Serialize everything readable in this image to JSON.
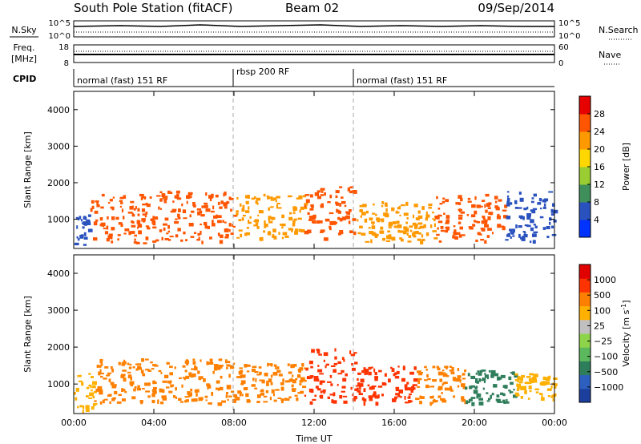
{
  "header": {
    "station": "South Pole Station (fitACF)",
    "beam": "Beam 02",
    "date": "09/Sep/2014"
  },
  "top_panels": {
    "nsky_label": "N.Sky",
    "nsearch_label": "N.Search",
    "nsky_ticks": [
      "10^5",
      "10^0"
    ],
    "nsearch_ticks": [
      "10^5",
      "10^0"
    ],
    "freq_label": "Freq.",
    "freq_unit": "[MHz]",
    "freq_ticks": [
      "18",
      "8"
    ],
    "nave_label": "Nave",
    "nave_ticks": [
      "60",
      "0"
    ],
    "cpid_label": "CPID",
    "cpid_segments": [
      {
        "label": "normal (fast) 151 RF",
        "start_h": 0,
        "end_h": 8
      },
      {
        "label": "rbsp 200 RF",
        "start_h": 8,
        "end_h": 14
      },
      {
        "label": "normal (fast) 151 RF",
        "start_h": 14,
        "end_h": 24
      }
    ]
  },
  "power_colorbar": {
    "label": "Power [dB]",
    "ticks": [
      "4",
      "8",
      "12",
      "16",
      "20",
      "24",
      "28"
    ],
    "colors": [
      "#0033ff",
      "#2a52be",
      "#3f8f5a",
      "#9acd32",
      "#ffd700",
      "#ff9900",
      "#ff5500",
      "#e60000"
    ]
  },
  "velocity_colorbar": {
    "label": "Velocity [m s",
    "label_exp": "-1",
    "label_close": "]",
    "ticks": [
      "1000",
      "500",
      "100",
      "25",
      "−25",
      "−100",
      "−500",
      "−1000"
    ],
    "colors": [
      "#1c3f9e",
      "#2d5fbf",
      "#2e7d5b",
      "#5cb85c",
      "#8ed44a",
      "#c0c0c0",
      "#ffb000",
      "#ff8000",
      "#ff3300",
      "#e00000"
    ]
  },
  "chart_data": [
    {
      "type": "heatmap",
      "title": "Power",
      "xlabel": "",
      "ylabel": "Slant Range [km]",
      "xlim": [
        0,
        24
      ],
      "ylim": [
        200,
        4500
      ],
      "x_ticks": [
        "00:00",
        "04:00",
        "08:00",
        "12:00",
        "16:00",
        "20:00",
        "00:00"
      ],
      "y_ticks": [
        1000,
        2000,
        3000,
        4000
      ],
      "mode_boundaries_h": [
        8,
        14
      ],
      "bands": [
        {
          "t0": 0.0,
          "t1": 0.8,
          "r0": 300,
          "r1": 1200,
          "color": "#2a52be"
        },
        {
          "t0": 0.8,
          "t1": 4.0,
          "r0": 350,
          "r1": 1700,
          "color": "#ff5500"
        },
        {
          "t0": 4.0,
          "t1": 8.0,
          "r0": 400,
          "r1": 1800,
          "color": "#ff5500"
        },
        {
          "t0": 8.0,
          "t1": 11.5,
          "r0": 500,
          "r1": 1700,
          "color": "#ff9900"
        },
        {
          "t0": 11.5,
          "t1": 14.0,
          "r0": 500,
          "r1": 2000,
          "color": "#ff5500"
        },
        {
          "t0": 14.0,
          "t1": 18.0,
          "r0": 400,
          "r1": 1500,
          "color": "#ff9900"
        },
        {
          "t0": 18.0,
          "t1": 21.5,
          "r0": 400,
          "r1": 1700,
          "color": "#ff5500"
        },
        {
          "t0": 21.5,
          "t1": 24.0,
          "r0": 400,
          "r1": 1800,
          "color": "#2a52be"
        }
      ]
    },
    {
      "type": "heatmap",
      "title": "Velocity",
      "xlabel": "Time UT",
      "ylabel": "Slant Range [km]",
      "xlim": [
        0,
        24
      ],
      "ylim": [
        200,
        4500
      ],
      "x_ticks": [
        "00:00",
        "04:00",
        "08:00",
        "12:00",
        "16:00",
        "20:00",
        "00:00"
      ],
      "y_ticks": [
        1000,
        2000,
        3000,
        4000
      ],
      "mode_boundaries_h": [
        8,
        14
      ],
      "bands": [
        {
          "t0": 0.0,
          "t1": 1.0,
          "r0": 300,
          "r1": 1300,
          "color": "#ffb000"
        },
        {
          "t0": 1.0,
          "t1": 8.0,
          "r0": 500,
          "r1": 1700,
          "color": "#ff8000"
        },
        {
          "t0": 8.0,
          "t1": 11.5,
          "r0": 500,
          "r1": 1600,
          "color": "#ff8000"
        },
        {
          "t0": 11.5,
          "t1": 14.0,
          "r0": 500,
          "r1": 2000,
          "color": "#ff3300"
        },
        {
          "t0": 14.0,
          "t1": 17.0,
          "r0": 500,
          "r1": 1500,
          "color": "#ff3300"
        },
        {
          "t0": 17.0,
          "t1": 19.5,
          "r0": 500,
          "r1": 1500,
          "color": "#ff8000"
        },
        {
          "t0": 19.5,
          "t1": 22.0,
          "r0": 500,
          "r1": 1400,
          "color": "#2e7d5b"
        },
        {
          "t0": 22.0,
          "t1": 24.0,
          "r0": 600,
          "r1": 1300,
          "color": "#ffb000"
        }
      ]
    }
  ]
}
